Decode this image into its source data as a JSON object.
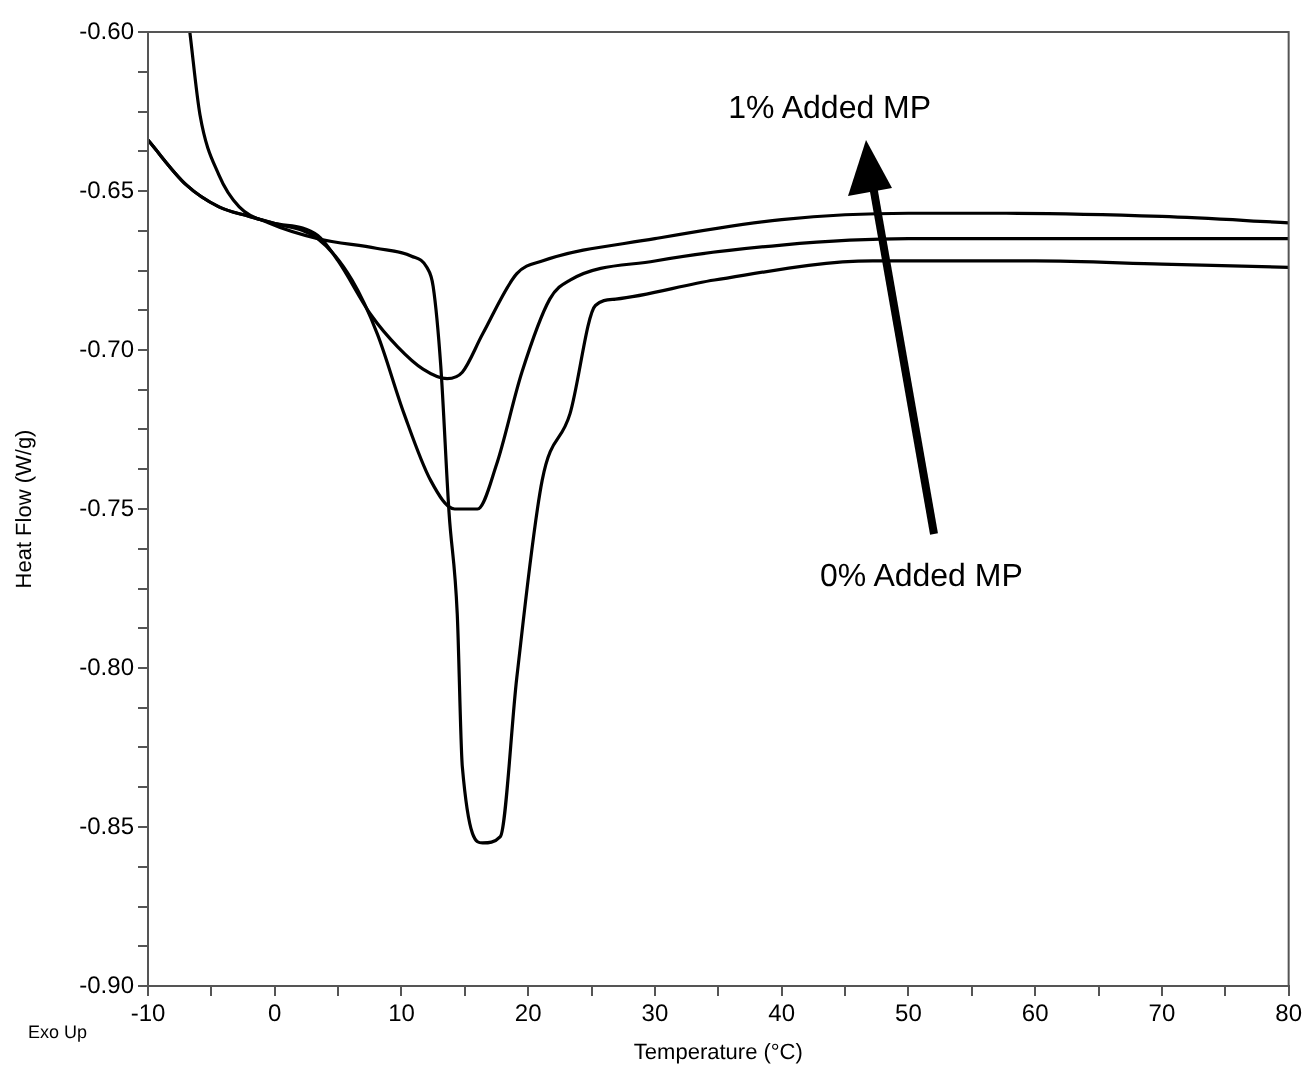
{
  "chart_data": {
    "type": "line",
    "xlabel": "Temperature (°C)",
    "ylabel": "Heat Flow (W/g)",
    "annotations": [
      {
        "text": "1% Added MP",
        "x": 46,
        "y": -0.657
      },
      "0% Added MP",
      "Exo Up"
    ],
    "xlim": [
      -10,
      80
    ],
    "xticks": [
      -10,
      {
        "value": -5,
        "label": null
      },
      0,
      {
        "value": 5,
        "label": null
      },
      10,
      {
        "value": 15,
        "label": null
      },
      20,
      {
        "value": 25,
        "label": null
      },
      30,
      {
        "value": 35,
        "label": null
      },
      40,
      {
        "value": 45,
        "label": null
      },
      50,
      {
        "value": 55,
        "label": null
      },
      60,
      {
        "value": 65,
        "label": null
      },
      70,
      {
        "value": 75,
        "label": null
      },
      80
    ],
    "ylim": [
      -0.9,
      -0.6
    ],
    "yticks": [
      {
        "value": -0.9,
        "label": "-0.90"
      },
      {
        "value": -0.85,
        "label": "-0.85"
      },
      {
        "value": -0.8,
        "label": "-0.80"
      },
      {
        "value": -0.75,
        "label": "-0.75"
      },
      {
        "value": -0.7,
        "label": "-0.70"
      },
      {
        "value": -0.65,
        "label": "-0.65"
      },
      {
        "value": -0.6,
        "label": "-0.60"
      },
      {
        "value": -0.8875,
        "label": null
      },
      {
        "value": -0.875,
        "label": null
      },
      {
        "value": -0.8625,
        "label": null
      },
      {
        "value": -0.8375,
        "label": null
      },
      {
        "value": -0.825,
        "label": null
      },
      {
        "value": -0.8125,
        "label": null
      },
      {
        "value": -0.7875,
        "label": null
      },
      {
        "value": -0.775,
        "label": null
      },
      {
        "value": -0.7625,
        "label": null
      },
      {
        "value": -0.7375,
        "label": null
      },
      {
        "value": -0.725,
        "label": null
      },
      {
        "value": -0.7125,
        "label": null
      },
      {
        "value": -0.6875,
        "label": null
      },
      {
        "value": -0.675,
        "label": null
      },
      {
        "value": -0.6625,
        "label": null
      },
      {
        "value": -0.6375,
        "label": null
      },
      {
        "value": -0.625,
        "label": null
      },
      {
        "value": -0.6125,
        "label": null
      }
    ],
    "grid": false,
    "legend": false,
    "marker": "none",
    "line_style": "solid",
    "series": [
      {
        "color": "#000000",
        "x": [
          -10,
          -7,
          -4.4,
          -2,
          -0.2,
          3.4,
          5,
          7.6,
          9.7,
          11.7,
          13.6,
          14.8,
          16.4,
          19.1,
          21.1,
          30,
          40,
          50,
          57.7,
          70,
          80
        ],
        "values": [
          -0.634,
          -0.648,
          -0.655,
          -0.658,
          -0.66,
          -0.664,
          -0.672,
          -0.689,
          -0.699,
          -0.706,
          -0.709,
          -0.707,
          -0.695,
          -0.676,
          -0.672,
          -0.665,
          -0.659,
          -0.657,
          -0.657,
          -0.658,
          -0.66
        ]
      },
      {
        "color": "#000000",
        "x": [
          -10,
          -7,
          -4.4,
          -2,
          -0.2,
          3.4,
          6.1,
          8.1,
          10.2,
          12.3,
          14.2,
          16,
          17.5,
          19.5,
          21.7,
          23.3,
          30,
          40,
          50,
          60,
          70,
          80
        ],
        "values": [
          -0.634,
          -0.648,
          -0.655,
          -0.658,
          -0.66,
          -0.665,
          -0.678,
          -0.695,
          -0.72,
          -0.741,
          -0.75,
          -0.75,
          -0.736,
          -0.707,
          -0.684,
          -0.678,
          -0.672,
          -0.667,
          -0.665,
          -0.665,
          -0.665,
          -0.665
        ]
      },
      {
        "color": "#000000",
        "x": [
          -6.7,
          -5.9,
          -4.4,
          -2.8,
          -0.5,
          3.4,
          8,
          10.8,
          12,
          12.5,
          13.1,
          13.75,
          14.4,
          14.8,
          16.4,
          17.8,
          19.1,
          21.1,
          23.3,
          25.3,
          26.9,
          34.7,
          47.2,
          60,
          70,
          80
        ],
        "values": [
          -0.6,
          -0.626,
          -0.645,
          -0.655,
          -0.66,
          -0.665,
          -0.668,
          -0.6705,
          -0.674,
          -0.68,
          -0.705,
          -0.751,
          -0.783,
          -0.831,
          -0.855,
          -0.853,
          -0.803,
          -0.741,
          -0.72,
          -0.686,
          -0.684,
          -0.678,
          -0.672,
          -0.672,
          -0.673,
          -0.674
        ]
      }
    ]
  }
}
